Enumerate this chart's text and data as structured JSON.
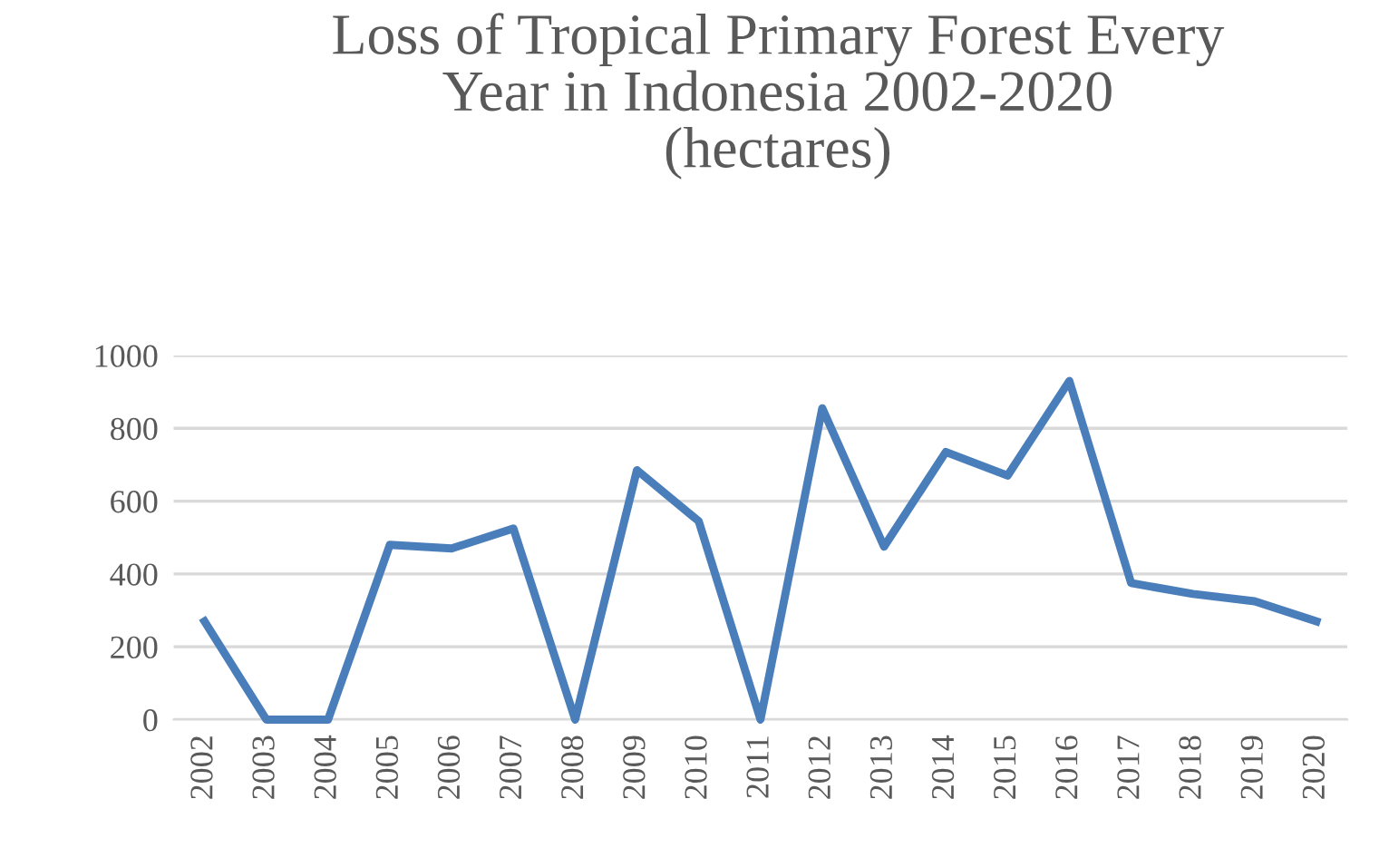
{
  "chart_data": {
    "type": "line",
    "title": "Loss of Tropical Primary Forest Every\nYear in Indonesia 2002-2020\n(hectares)",
    "categories": [
      "2002",
      "2003",
      "2004",
      "2005",
      "2006",
      "2007",
      "2008",
      "2009",
      "2010",
      "2011",
      "2012",
      "2013",
      "2014",
      "2015",
      "2016",
      "2017",
      "2018",
      "2019",
      "2020"
    ],
    "series": [
      {
        "color": "#4a7ebb",
        "values": [
          270,
          0,
          0,
          480,
          470,
          525,
          0,
          685,
          545,
          0,
          855,
          475,
          735,
          670,
          930,
          375,
          345,
          325,
          270
        ]
      }
    ],
    "ylim": [
      0,
      1000
    ],
    "yticks": [
      0,
      200,
      400,
      600,
      800,
      1000
    ],
    "grid": "y",
    "marker": "none",
    "line_style": "solid"
  }
}
